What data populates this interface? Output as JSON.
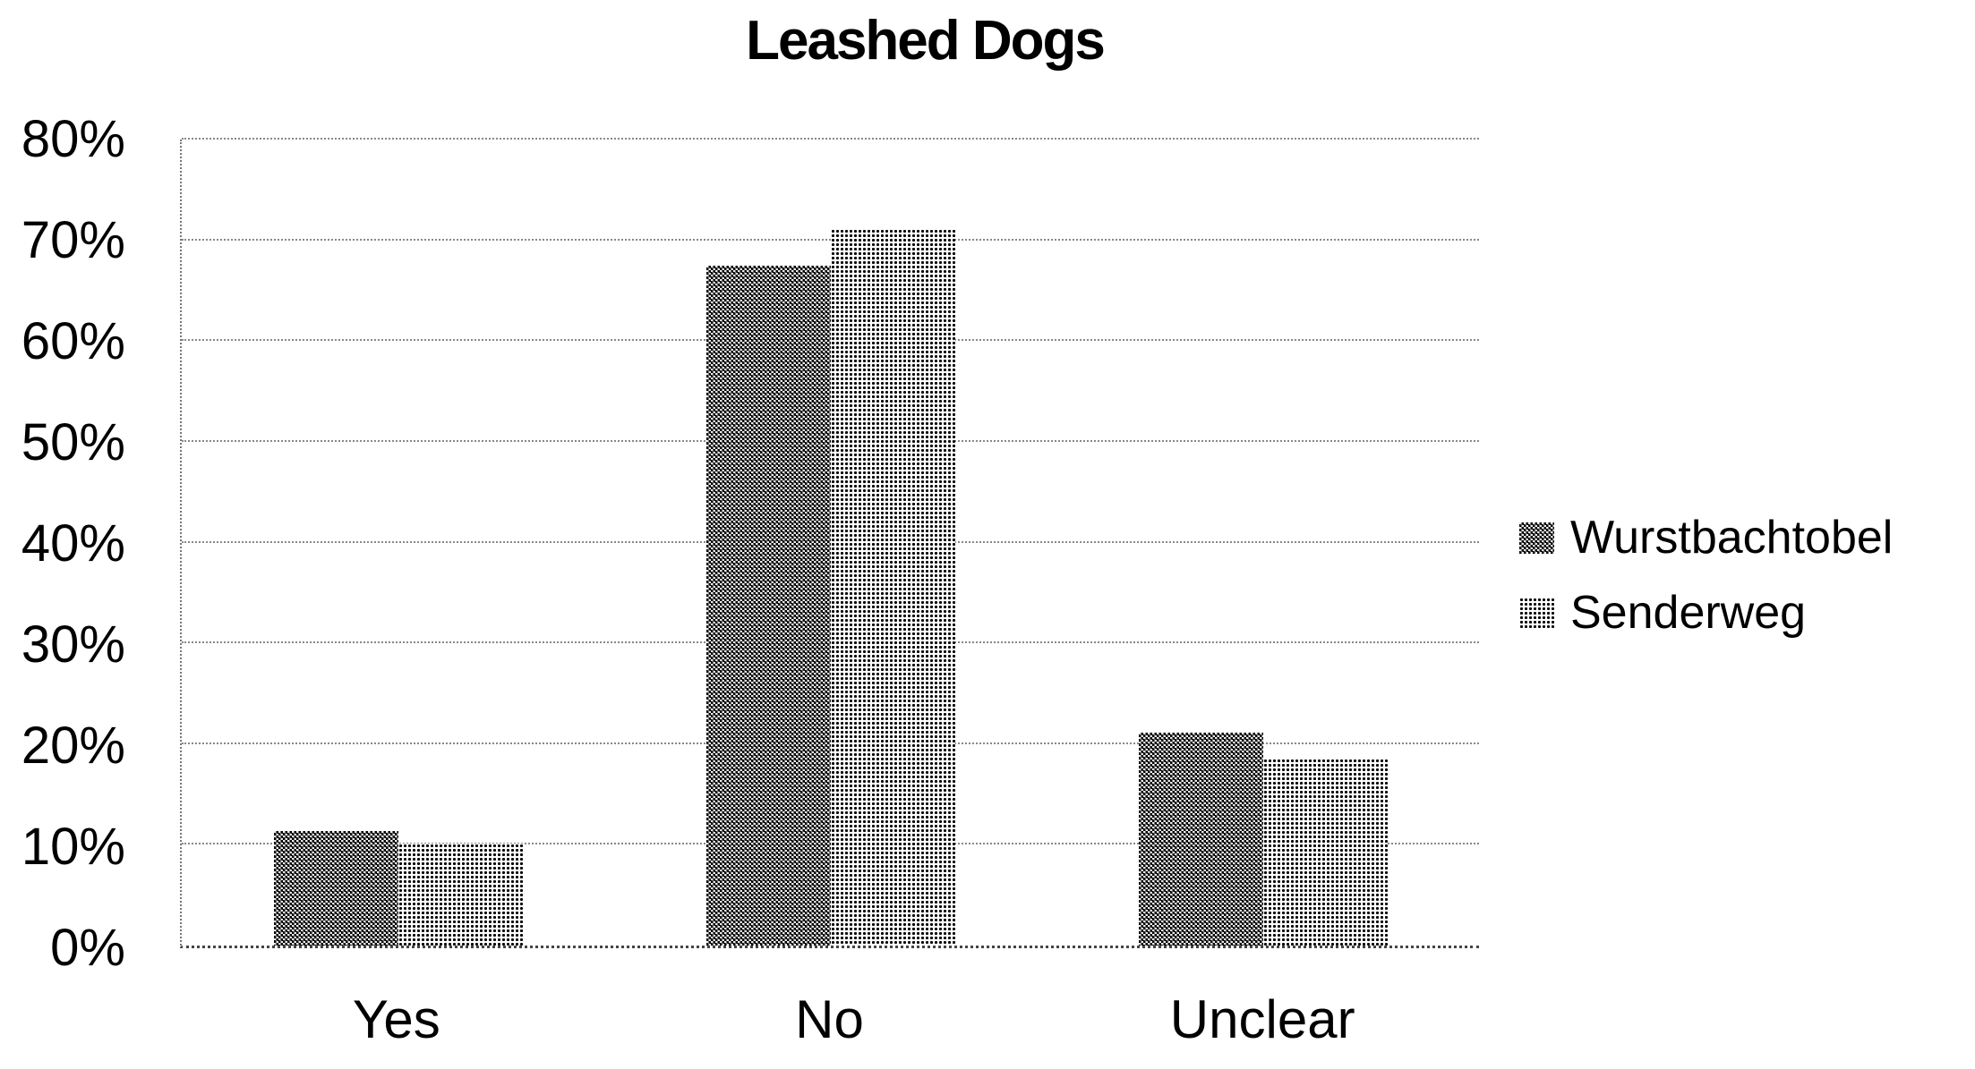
{
  "chart_data": {
    "type": "bar",
    "title": "Leashed Dogs",
    "categories": [
      "Yes",
      "No",
      "Unclear"
    ],
    "series": [
      {
        "name": "Wurstbachtobel",
        "color": "#5f5f5f",
        "values": [
          11.4,
          67.5,
          21.1
        ]
      },
      {
        "name": "Senderweg",
        "color": "#b9b9b9",
        "values": [
          10.1,
          71.1,
          18.6
        ]
      }
    ],
    "xlabel": "",
    "ylabel": "",
    "ylim": [
      0,
      80
    ],
    "ytick_step": 10,
    "ytick_labels": [
      "0%",
      "10%",
      "20%",
      "30%",
      "40%",
      "50%",
      "60%",
      "70%",
      "80%"
    ],
    "value_unit": "%",
    "grid": true,
    "legend_position": "right"
  },
  "colors": {
    "series_dark": "#5f5f5f",
    "series_light": "#b9b9b9",
    "gridline": "#888888",
    "axis": "#444444",
    "text": "#000000",
    "background": "#ffffff"
  }
}
